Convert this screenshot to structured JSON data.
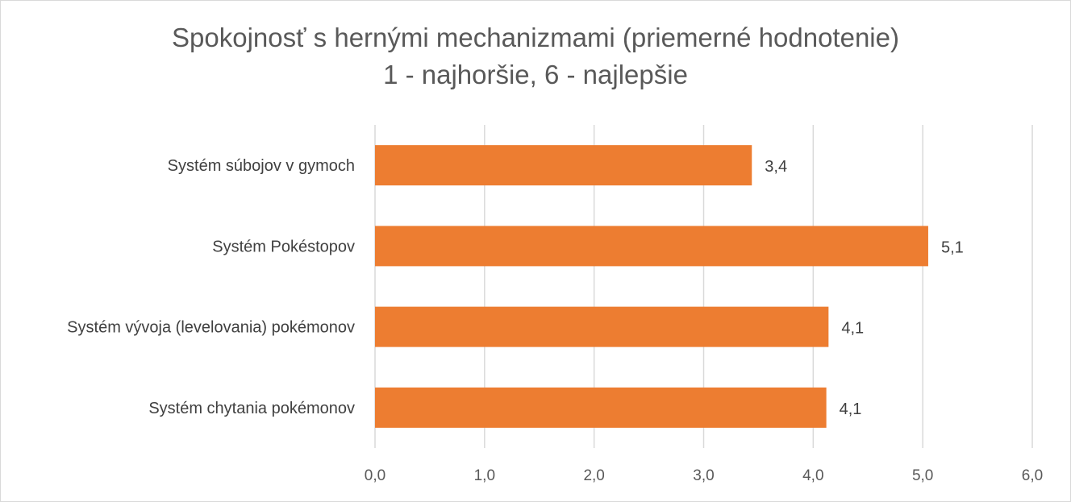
{
  "chart_data": {
    "type": "bar",
    "orientation": "horizontal",
    "title": "Spokojnosť s hernými mechanizmami (priemerné hodnotenie)",
    "subtitle": "1 - najhoršie, 6 - najlepšie",
    "categories": [
      "Systém súbojov v gymoch",
      "Systém Pokéstopov",
      "Systém vývoja (levelovania) pokémonov",
      "Systém chytania pokémonov"
    ],
    "values": [
      3.44,
      5.05,
      4.14,
      4.12
    ],
    "data_labels": [
      "3,4",
      "5,1",
      "4,1",
      "4,1"
    ],
    "xlim": [
      0,
      6
    ],
    "ticks": [
      "0,0",
      "1,0",
      "2,0",
      "3,0",
      "4,0",
      "5,0",
      "6,0"
    ],
    "grid": true,
    "legend": "none",
    "bar_color": "#ed7d31",
    "grid_color": "#d9d9d9"
  }
}
